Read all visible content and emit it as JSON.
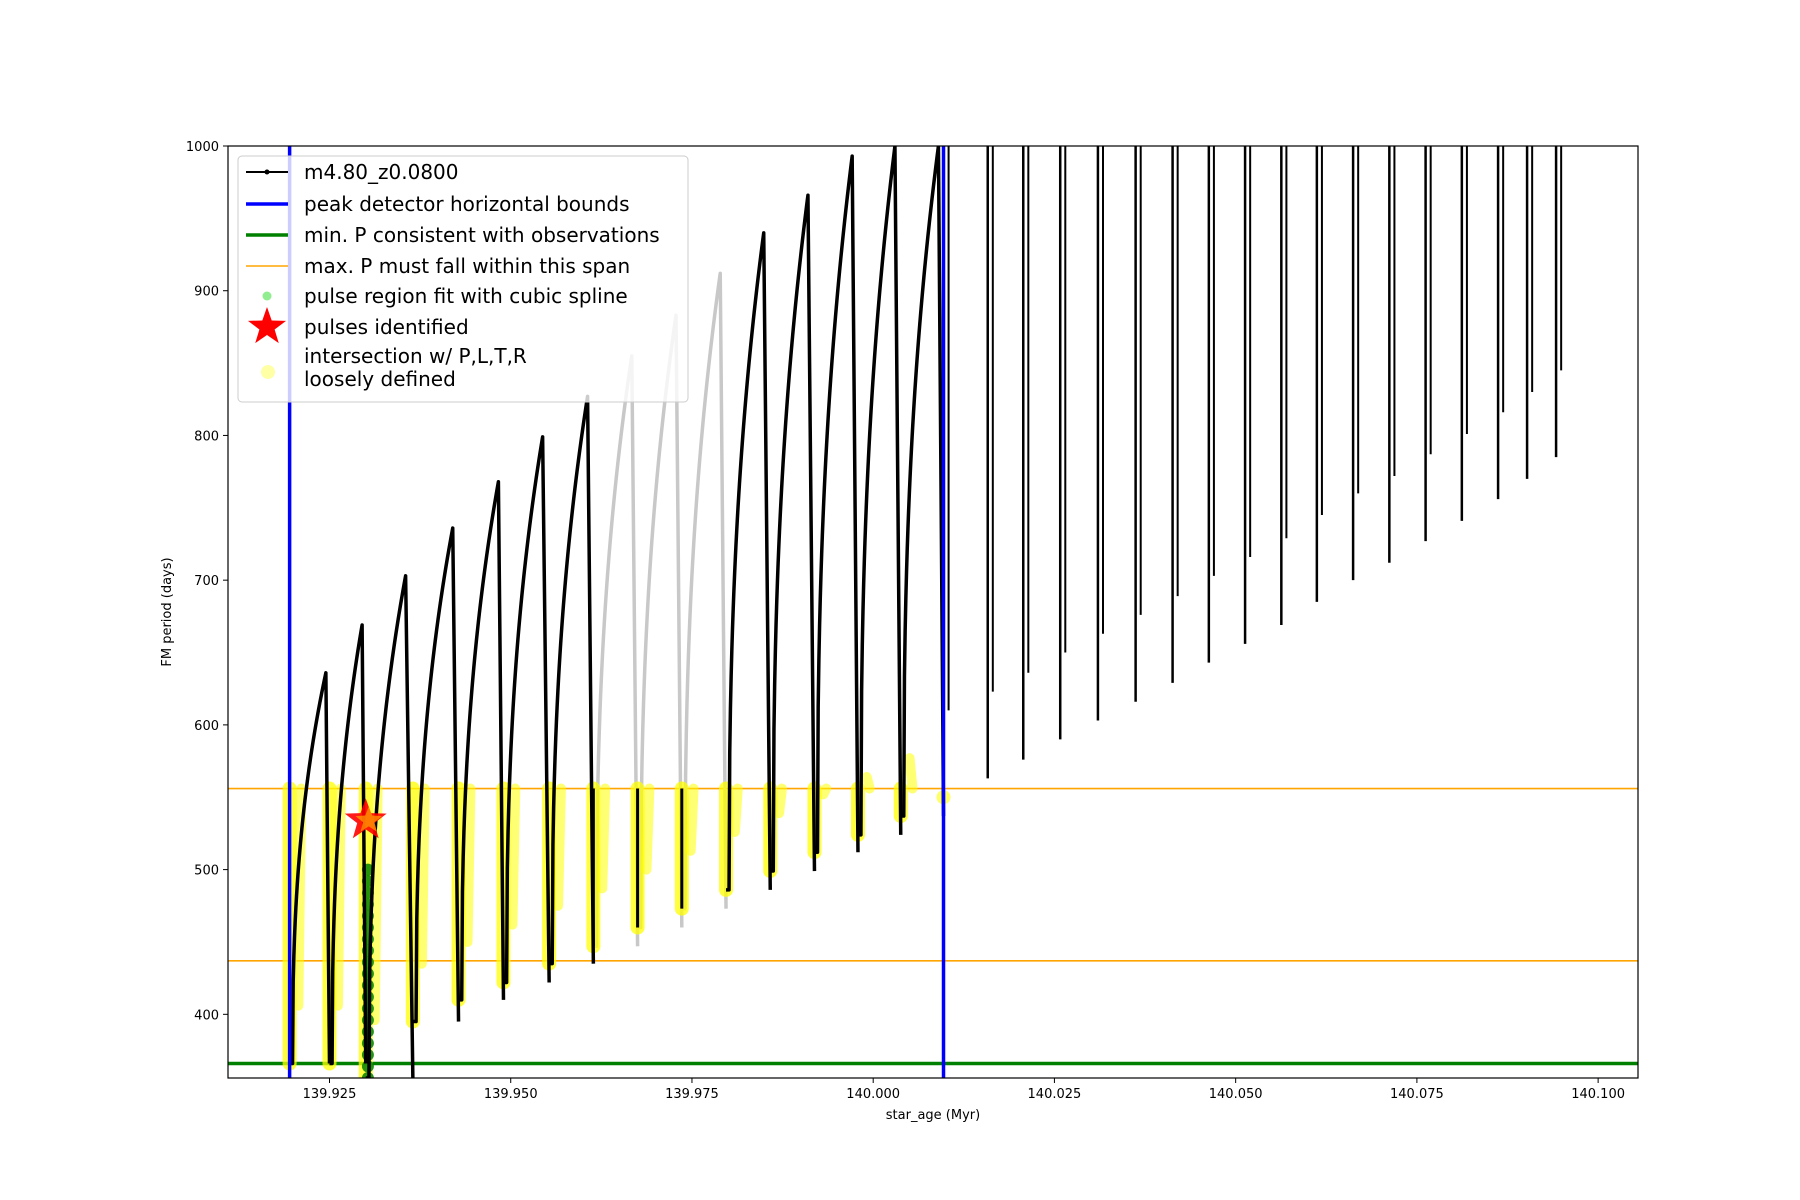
{
  "chart_data": {
    "type": "line",
    "xlabel": "star_age (Myr)",
    "ylabel": "FM period (days)",
    "xlim": [
      139.911,
      140.1055
    ],
    "ylim": [
      356,
      1000
    ],
    "xticks": [
      139.925,
      139.95,
      139.975,
      140.0,
      140.025,
      140.05,
      140.075,
      140.1
    ],
    "xtick_labels": [
      "139.925",
      "139.950",
      "139.975",
      "140.000",
      "140.025",
      "140.050",
      "140.075",
      "140.100"
    ],
    "yticks": [
      400,
      500,
      600,
      700,
      800,
      900,
      1000
    ],
    "ytick_labels": [
      "400",
      "500",
      "600",
      "700",
      "800",
      "900",
      "1000"
    ],
    "grid": false,
    "legend_position": "top-left",
    "legend": [
      {
        "key": "track",
        "label": "m4.80_z0.0800"
      },
      {
        "key": "blue",
        "label": "peak detector horizontal bounds"
      },
      {
        "key": "green",
        "label": "min. P consistent with observations"
      },
      {
        "key": "orange",
        "label": "max. P must fall within this span"
      },
      {
        "key": "spline",
        "label": "pulse region fit with cubic spline"
      },
      {
        "key": "pulse",
        "label": "pulses identified"
      },
      {
        "key": "intersect",
        "label": "intersection w/ P,L,T,R",
        "label2": "loosely defined"
      }
    ],
    "colors": {
      "track": "#000000",
      "grey_track": "#c8c8c8",
      "blue": "#0000ff",
      "green": "#008000",
      "orange": "#ffa500",
      "yellow": "#ffff00",
      "light_green": "#90ee90",
      "red": "#ff0000"
    },
    "vertical_bounds_x": [
      139.9195,
      140.0097
    ],
    "min_period_line_y": 366,
    "max_period_span_y": [
      437,
      556
    ],
    "pulses_identified": [
      {
        "x": 139.93,
        "y": 534
      }
    ],
    "pulse_series": {
      "name": "m4.80_z0.0800",
      "cycles": [
        {
          "start": 139.9195,
          "peak_x": 139.9245,
          "peak_y": 636,
          "end": 139.925,
          "min_y": 366
        },
        {
          "start": 139.925,
          "peak_x": 139.9295,
          "peak_y": 669,
          "end": 139.93,
          "min_y": 366
        },
        {
          "start": 139.93,
          "peak_x": 139.9355,
          "peak_y": 703,
          "end": 139.9365,
          "min_y": 356
        },
        {
          "start": 139.9365,
          "peak_x": 139.942,
          "peak_y": 736,
          "end": 139.9428,
          "min_y": 395
        },
        {
          "start": 139.9428,
          "peak_x": 139.9483,
          "peak_y": 768,
          "end": 139.949,
          "min_y": 410
        },
        {
          "start": 139.949,
          "peak_x": 139.9544,
          "peak_y": 799,
          "end": 139.9553,
          "min_y": 422
        },
        {
          "start": 139.9553,
          "peak_x": 139.9606,
          "peak_y": 827,
          "end": 139.9614,
          "min_y": 435
        },
        {
          "start": 139.9614,
          "peak_x": 139.9667,
          "peak_y": 855,
          "end": 139.9675,
          "min_y": 447
        },
        {
          "start": 139.9675,
          "peak_x": 139.9728,
          "peak_y": 883,
          "end": 139.9736,
          "min_y": 460
        },
        {
          "start": 139.9736,
          "peak_x": 139.9789,
          "peak_y": 912,
          "end": 139.9797,
          "min_y": 473
        },
        {
          "start": 139.9797,
          "peak_x": 139.9849,
          "peak_y": 940,
          "end": 139.9858,
          "min_y": 486
        },
        {
          "start": 139.9858,
          "peak_x": 139.991,
          "peak_y": 966,
          "end": 139.9919,
          "min_y": 499
        },
        {
          "start": 139.9919,
          "peak_x": 139.9971,
          "peak_y": 993,
          "end": 139.9979,
          "min_y": 512
        },
        {
          "start": 139.9979,
          "peak_x": 140.003,
          "peak_y": 1000,
          "end": 140.0038,
          "min_y": 524
        },
        {
          "start": 140.0038,
          "peak_x": 140.009,
          "peak_y": 1000,
          "end": 140.0097,
          "min_y": 537
        }
      ],
      "spikes": [
        {
          "x": 140.0097,
          "min_y": 550
        },
        {
          "x": 140.0158,
          "min_y": 563
        },
        {
          "x": 140.0207,
          "min_y": 576
        },
        {
          "x": 140.0258,
          "min_y": 590
        },
        {
          "x": 140.031,
          "min_y": 603
        },
        {
          "x": 140.0362,
          "min_y": 616
        },
        {
          "x": 140.0413,
          "min_y": 629
        },
        {
          "x": 140.0463,
          "min_y": 643
        },
        {
          "x": 140.0513,
          "min_y": 656
        },
        {
          "x": 140.0563,
          "min_y": 669
        },
        {
          "x": 140.0612,
          "min_y": 685
        },
        {
          "x": 140.0662,
          "min_y": 700
        },
        {
          "x": 140.0712,
          "min_y": 712
        },
        {
          "x": 140.0762,
          "min_y": 727
        },
        {
          "x": 140.0812,
          "min_y": 741
        },
        {
          "x": 140.0862,
          "min_y": 756
        },
        {
          "x": 140.0902,
          "min_y": 770
        },
        {
          "x": 140.0942,
          "min_y": 785
        }
      ]
    }
  }
}
